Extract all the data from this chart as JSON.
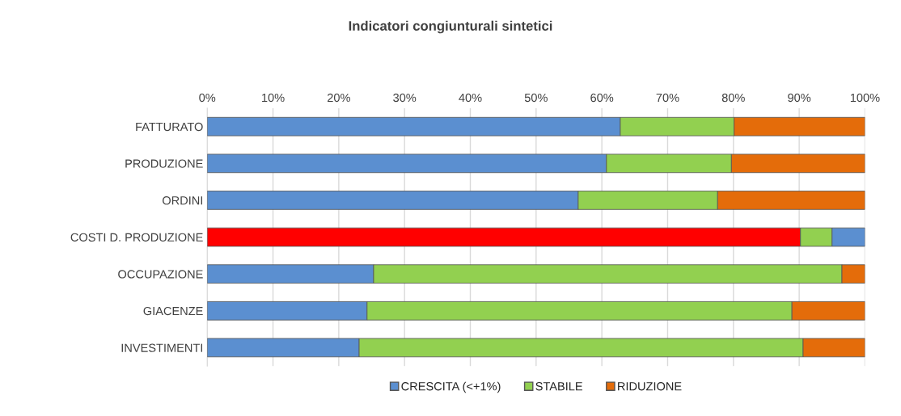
{
  "chart_data": {
    "type": "bar",
    "orientation": "horizontal",
    "stacked": true,
    "title": "Indicatori congiunturali sintetici",
    "categories": [
      "FATTURATO",
      "PRODUZIONE",
      "ORDINI",
      "COSTI D. PRODUZIONE",
      "OCCUPAZIONE",
      "GIACENZE",
      "INVESTIMENTI"
    ],
    "series": [
      {
        "name": "CRESCITA (<+1%)",
        "color": "#5b8fd0",
        "colors": [
          "#5b8fd0",
          "#5b8fd0",
          "#5b8fd0",
          "#ff0000",
          "#5b8fd0",
          "#5b8fd0",
          "#5b8fd0"
        ],
        "values": [
          62.8,
          60.7,
          56.4,
          90.2,
          25.3,
          24.3,
          23.1
        ]
      },
      {
        "name": "STABILE",
        "color": "#92d050",
        "values": [
          17.3,
          19.0,
          21.2,
          4.8,
          71.2,
          64.6,
          67.5
        ]
      },
      {
        "name": "RIDUZIONE",
        "color": "#e46c0a",
        "colors": [
          "#e46c0a",
          "#e46c0a",
          "#e46c0a",
          "#5b8fd0",
          "#e46c0a",
          "#e46c0a",
          "#e46c0a"
        ],
        "values": [
          19.9,
          20.3,
          22.4,
          5.0,
          3.5,
          11.1,
          9.4
        ]
      }
    ],
    "xlim": [
      0,
      100
    ],
    "xticks": [
      {
        "value": 0,
        "label": "0%"
      },
      {
        "value": 10,
        "label": "10%"
      },
      {
        "value": 20,
        "label": "20%"
      },
      {
        "value": 30,
        "label": "30%"
      },
      {
        "value": 40,
        "label": "40%"
      },
      {
        "value": 50,
        "label": "50%"
      },
      {
        "value": 60,
        "label": "60%"
      },
      {
        "value": 70,
        "label": "70%"
      },
      {
        "value": 80,
        "label": "80%"
      },
      {
        "value": 90,
        "label": "90%"
      },
      {
        "value": 100,
        "label": "100%"
      }
    ],
    "grid": "x",
    "legend": "bottom"
  }
}
